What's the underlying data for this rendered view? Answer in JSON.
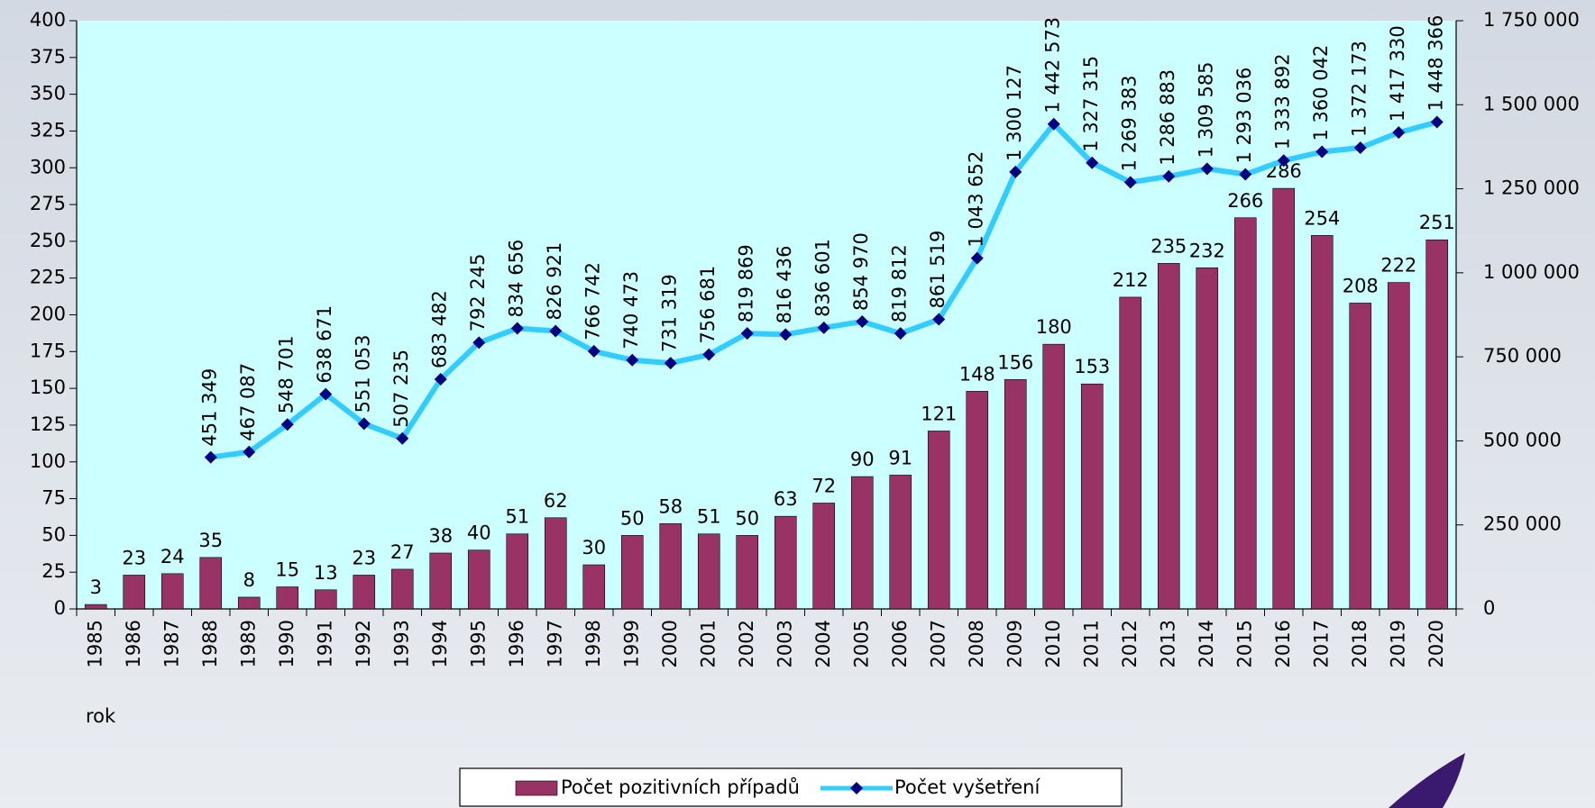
{
  "chart_data": {
    "type": "combo",
    "x_label": "rok",
    "categories": [
      "1985",
      "1986",
      "1987",
      "1988",
      "1989",
      "1990",
      "1991",
      "1992",
      "1993",
      "1994",
      "1995",
      "1996",
      "1997",
      "1998",
      "1999",
      "2000",
      "2001",
      "2002",
      "2003",
      "2004",
      "2005",
      "2006",
      "2007",
      "2008",
      "2009",
      "2010",
      "2011",
      "2012",
      "2013",
      "2014",
      "2015",
      "2016",
      "2017",
      "2018",
      "2019",
      "2020"
    ],
    "series": [
      {
        "name": "Počet pozitivních případů",
        "type": "bar",
        "color": "#993366",
        "values": [
          3,
          23,
          24,
          35,
          8,
          15,
          13,
          23,
          27,
          38,
          40,
          51,
          62,
          30,
          50,
          58,
          51,
          50,
          63,
          72,
          90,
          91,
          121,
          148,
          156,
          180,
          153,
          212,
          235,
          232,
          266,
          286,
          254,
          208,
          222,
          251
        ]
      },
      {
        "name": "Počet vyšetření",
        "type": "line",
        "axis": "y2",
        "color": "#33ccff",
        "marker_color": "#000080",
        "values": [
          null,
          null,
          null,
          451349,
          467087,
          548701,
          638671,
          551053,
          507235,
          683482,
          792245,
          834656,
          826921,
          766742,
          740473,
          731319,
          756681,
          819869,
          816436,
          836601,
          854970,
          819812,
          861519,
          1043652,
          1300127,
          1442573,
          1327315,
          1269383,
          1286883,
          1309585,
          1293036,
          1333892,
          1360042,
          1372173,
          1417330,
          1448366
        ],
        "value_labels": [
          null,
          null,
          null,
          "451 349",
          "467 087",
          "548 701",
          "638 671",
          "551 053",
          "507 235",
          "683 482",
          "792 245",
          "834 656",
          "826 921",
          "766 742",
          "740 473",
          "731 319",
          "756 681",
          "819 869",
          "816 436",
          "836 601",
          "854 970",
          "819 812",
          "861 519",
          "1 043 652",
          "1 300 127",
          "1 442 573",
          "1 327 315",
          "1 269 383",
          "1 286 883",
          "1 309 585",
          "1 293 036",
          "1 333 892",
          "1 360 042",
          "1 372 173",
          "1 417 330",
          "1 448 366"
        ]
      }
    ],
    "ylim": [
      0,
      400
    ],
    "yticks": [
      0,
      25,
      50,
      75,
      100,
      125,
      150,
      175,
      200,
      225,
      250,
      275,
      300,
      325,
      350,
      375,
      400
    ],
    "y2lim": [
      0,
      1750000
    ],
    "y2ticks": [
      0,
      {
        "value": 250000,
        "label": "250 000"
      },
      {
        "value": 500000,
        "label": "500 000"
      },
      {
        "value": 750000,
        "label": "750 000"
      },
      {
        "value": 1000000,
        "label": "1 000 000"
      },
      {
        "value": 1250000,
        "label": "1 250 000"
      },
      {
        "value": 1500000,
        "label": "1 500 000"
      },
      {
        "value": 1750000,
        "label": "1 750 000"
      }
    ],
    "grid": false,
    "plot_background": "#ccffff",
    "legend_position": "bottom"
  }
}
